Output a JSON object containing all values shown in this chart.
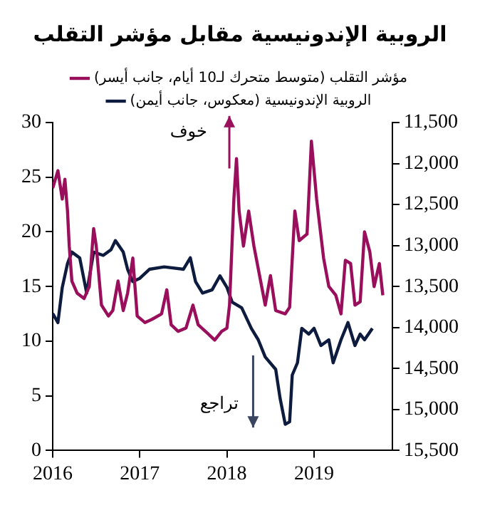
{
  "chart_data": {
    "type": "line",
    "title": "الروبية الإندونيسية مقابل مؤشر التقلب",
    "annotations": [
      "خوف",
      "تراجع"
    ],
    "series": [
      {
        "name": "مؤشر التقلب (متوسط متحرك لـ10 أيام، جانب أيسر)",
        "color": "#990f5c",
        "x": [
          2016.0,
          2016.06,
          2016.11,
          2016.14,
          2016.17,
          2016.19,
          2016.22,
          2016.28,
          2016.36,
          2016.42,
          2016.47,
          2016.5,
          2016.56,
          2016.64,
          2016.69,
          2016.75,
          2016.81,
          2016.86,
          2016.92,
          2016.97,
          2017.06,
          2017.14,
          2017.25,
          2017.31,
          2017.36,
          2017.44,
          2017.53,
          2017.61,
          2017.67,
          2017.78,
          2017.86,
          2017.94,
          2018.0,
          2018.03,
          2018.08,
          2018.11,
          2018.14,
          2018.19,
          2018.25,
          2018.31,
          2018.44,
          2018.5,
          2018.56,
          2018.67,
          2018.72,
          2018.78,
          2018.83,
          2018.92,
          2018.97,
          2019.03,
          2019.11,
          2019.17,
          2019.25,
          2019.31,
          2019.36,
          2019.42,
          2019.47,
          2019.53,
          2019.58,
          2019.64,
          2019.69,
          2019.75,
          2019.79
        ],
        "values": [
          24,
          25.6,
          23,
          24.8,
          21.9,
          18.7,
          15.5,
          14.4,
          13.9,
          15,
          20.3,
          18.7,
          13.3,
          12.3,
          12.8,
          15.5,
          12.8,
          14.4,
          17.6,
          12.3,
          11.7,
          12,
          12.5,
          14.7,
          11.5,
          10.9,
          11.2,
          13.3,
          11.5,
          10.7,
          10.1,
          10.9,
          11.2,
          13.3,
          23,
          26.7,
          21.9,
          18.7,
          21.9,
          18.7,
          13.3,
          16,
          12.8,
          12.5,
          13.1,
          21.9,
          19.2,
          19.8,
          28.3,
          23,
          17.6,
          15,
          14.2,
          12.5,
          17.4,
          17.1,
          13.3,
          13.6,
          20,
          18.2,
          15,
          17.1,
          14.2
        ]
      },
      {
        "name": "الروبية الإندونيسية (معكوس، جانب أيمن)",
        "color": "#0d1b3e",
        "axis": "y2",
        "x": [
          2016.0,
          2016.06,
          2016.11,
          2016.17,
          2016.22,
          2016.31,
          2016.39,
          2016.47,
          2016.58,
          2016.67,
          2016.72,
          2016.81,
          2016.86,
          2016.92,
          2017.0,
          2017.11,
          2017.28,
          2017.5,
          2017.58,
          2017.64,
          2017.72,
          2017.83,
          2017.92,
          2018.0,
          2018.06,
          2018.17,
          2018.28,
          2018.36,
          2018.44,
          2018.56,
          2018.61,
          2018.67,
          2018.72,
          2018.75,
          2018.81,
          2018.86,
          2018.94,
          2019.0,
          2019.08,
          2019.17,
          2019.22,
          2019.31,
          2019.39,
          2019.47,
          2019.53,
          2019.58,
          2019.67
        ],
        "values": [
          13830,
          13940,
          13510,
          13220,
          13080,
          13150,
          13580,
          13080,
          13120,
          13050,
          12940,
          13080,
          13290,
          13440,
          13400,
          13290,
          13260,
          13290,
          13150,
          13440,
          13580,
          13540,
          13370,
          13510,
          13690,
          13760,
          14010,
          14150,
          14360,
          14510,
          14860,
          15180,
          15150,
          14580,
          14430,
          14010,
          14080,
          14010,
          14220,
          14150,
          14430,
          14150,
          13940,
          14220,
          14080,
          14150,
          14010
        ]
      }
    ],
    "xlim": [
      2016,
      2019.9
    ],
    "xticks": [
      2016,
      2017,
      2018,
      2019
    ],
    "ylim": [
      0,
      30
    ],
    "yticks": [
      0,
      5,
      10,
      15,
      20,
      25,
      30
    ],
    "y2lim": [
      15500,
      11500
    ],
    "y2ticks": [
      {
        "value": 11500,
        "label": "11,500"
      },
      {
        "value": 12000,
        "label": "12,000"
      },
      {
        "value": 12500,
        "label": "12,500"
      },
      {
        "value": 13000,
        "label": "13,000"
      },
      {
        "value": 13500,
        "label": "13,500"
      },
      {
        "value": 14000,
        "label": "14,000"
      },
      {
        "value": 14500,
        "label": "14,500"
      },
      {
        "value": 15000,
        "label": "15,000"
      },
      {
        "value": 15500,
        "label": "15,500"
      }
    ],
    "grid": false,
    "legend": "top",
    "marker": "none",
    "line_style": "solid"
  }
}
